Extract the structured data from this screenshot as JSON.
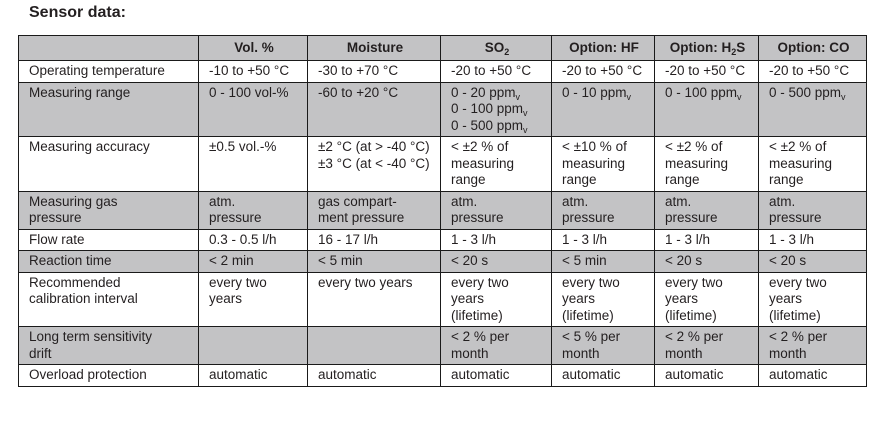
{
  "title": "Sensor data:",
  "colors": {
    "shaded_row": "#c3c3c5",
    "border": "#1a1a1a"
  },
  "columns": [
    [
      [
        ""
      ]
    ],
    [
      [
        "Vol. %"
      ]
    ],
    [
      [
        "Moisture"
      ]
    ],
    [
      [
        "SO",
        {
          "sub": "2"
        }
      ]
    ],
    [
      [
        "Option: HF"
      ]
    ],
    [
      [
        "Option: H",
        {
          "sub": "2"
        },
        "S"
      ]
    ],
    [
      [
        "Option: CO"
      ]
    ]
  ],
  "rows": [
    {
      "shaded": false,
      "cells": [
        [
          [
            "Operating temperature"
          ]
        ],
        [
          [
            "-10 to +50 °C"
          ]
        ],
        [
          [
            "-30 to +70 °C"
          ]
        ],
        [
          [
            "-20 to +50 °C"
          ]
        ],
        [
          [
            "-20 to +50 °C"
          ]
        ],
        [
          [
            "-20 to +50 °C"
          ]
        ],
        [
          [
            "-20 to +50 °C"
          ]
        ]
      ]
    },
    {
      "shaded": true,
      "cells": [
        [
          [
            "Measuring range"
          ]
        ],
        [
          [
            "0 - 100 vol-%"
          ]
        ],
        [
          [
            "-60 to +20 °C"
          ]
        ],
        [
          [
            "0 - 20 ppm",
            {
              "sub": "v"
            }
          ],
          [
            "0 - 100 ppm",
            {
              "sub": "v"
            }
          ],
          [
            "0 - 500 ppm",
            {
              "sub": "v"
            }
          ]
        ],
        [
          [
            "0 - 10 ppm",
            {
              "sub": "v"
            }
          ]
        ],
        [
          [
            "0 - 100 ppm",
            {
              "sub": "v"
            }
          ]
        ],
        [
          [
            "0 - 500 ppm",
            {
              "sub": "v"
            }
          ]
        ]
      ]
    },
    {
      "shaded": false,
      "cells": [
        [
          [
            "Measuring accuracy"
          ]
        ],
        [
          [
            "±0.5 vol.-%"
          ]
        ],
        [
          [
            "±2 °C (at > -40 °C)"
          ],
          [
            "±3 °C (at < -40 °C)"
          ]
        ],
        [
          [
            "< ±2 % of"
          ],
          [
            "measuring"
          ],
          [
            "range"
          ]
        ],
        [
          [
            "< ±10 % of"
          ],
          [
            "measuring"
          ],
          [
            "range"
          ]
        ],
        [
          [
            "< ±2 % of"
          ],
          [
            "measuring"
          ],
          [
            "range"
          ]
        ],
        [
          [
            "< ±2 % of"
          ],
          [
            "measuring"
          ],
          [
            "range"
          ]
        ]
      ]
    },
    {
      "shaded": true,
      "cells": [
        [
          [
            "Measuring gas"
          ],
          [
            "pressure"
          ]
        ],
        [
          [
            "atm."
          ],
          [
            "pressure"
          ]
        ],
        [
          [
            "gas compart-"
          ],
          [
            "ment pressure"
          ]
        ],
        [
          [
            "atm."
          ],
          [
            "pressure"
          ]
        ],
        [
          [
            "atm."
          ],
          [
            "pressure"
          ]
        ],
        [
          [
            "atm."
          ],
          [
            "pressure"
          ]
        ],
        [
          [
            "atm."
          ],
          [
            "pressure"
          ]
        ]
      ]
    },
    {
      "shaded": false,
      "cells": [
        [
          [
            "Flow rate"
          ]
        ],
        [
          [
            "0.3 - 0.5 l/h"
          ]
        ],
        [
          [
            "16 - 17 l/h"
          ]
        ],
        [
          [
            "1 - 3 l/h"
          ]
        ],
        [
          [
            "1 - 3 l/h"
          ]
        ],
        [
          [
            "1 - 3 l/h"
          ]
        ],
        [
          [
            "1 - 3 l/h"
          ]
        ]
      ]
    },
    {
      "shaded": true,
      "cells": [
        [
          [
            "Reaction time"
          ]
        ],
        [
          [
            "< 2 min"
          ]
        ],
        [
          [
            "< 5 min"
          ]
        ],
        [
          [
            "< 20 s"
          ]
        ],
        [
          [
            "< 5 min"
          ]
        ],
        [
          [
            "< 20 s"
          ]
        ],
        [
          [
            "< 20 s"
          ]
        ]
      ]
    },
    {
      "shaded": false,
      "cells": [
        [
          [
            "Recommended"
          ],
          [
            "calibration interval"
          ]
        ],
        [
          [
            "every two"
          ],
          [
            "years"
          ]
        ],
        [
          [
            "every two years"
          ]
        ],
        [
          [
            "every two"
          ],
          [
            "years"
          ],
          [
            "(lifetime)"
          ]
        ],
        [
          [
            "every two"
          ],
          [
            "years"
          ],
          [
            "(lifetime)"
          ]
        ],
        [
          [
            "every two"
          ],
          [
            "years"
          ],
          [
            "(lifetime)"
          ]
        ],
        [
          [
            "every two"
          ],
          [
            "years"
          ],
          [
            "(lifetime)"
          ]
        ]
      ]
    },
    {
      "shaded": true,
      "cells": [
        [
          [
            "Long term sensitivity"
          ],
          [
            "drift"
          ]
        ],
        [
          [
            ""
          ]
        ],
        [
          [
            ""
          ]
        ],
        [
          [
            "< 2 % per"
          ],
          [
            "month"
          ]
        ],
        [
          [
            "< 5 % per"
          ],
          [
            "month"
          ]
        ],
        [
          [
            "< 2 % per"
          ],
          [
            "month"
          ]
        ],
        [
          [
            "< 2 % per"
          ],
          [
            "month"
          ]
        ]
      ]
    },
    {
      "shaded": false,
      "cells": [
        [
          [
            "Overload protection"
          ]
        ],
        [
          [
            "automatic"
          ]
        ],
        [
          [
            "automatic"
          ]
        ],
        [
          [
            "automatic"
          ]
        ],
        [
          [
            "automatic"
          ]
        ],
        [
          [
            "automatic"
          ]
        ],
        [
          [
            "automatic"
          ]
        ]
      ]
    }
  ]
}
